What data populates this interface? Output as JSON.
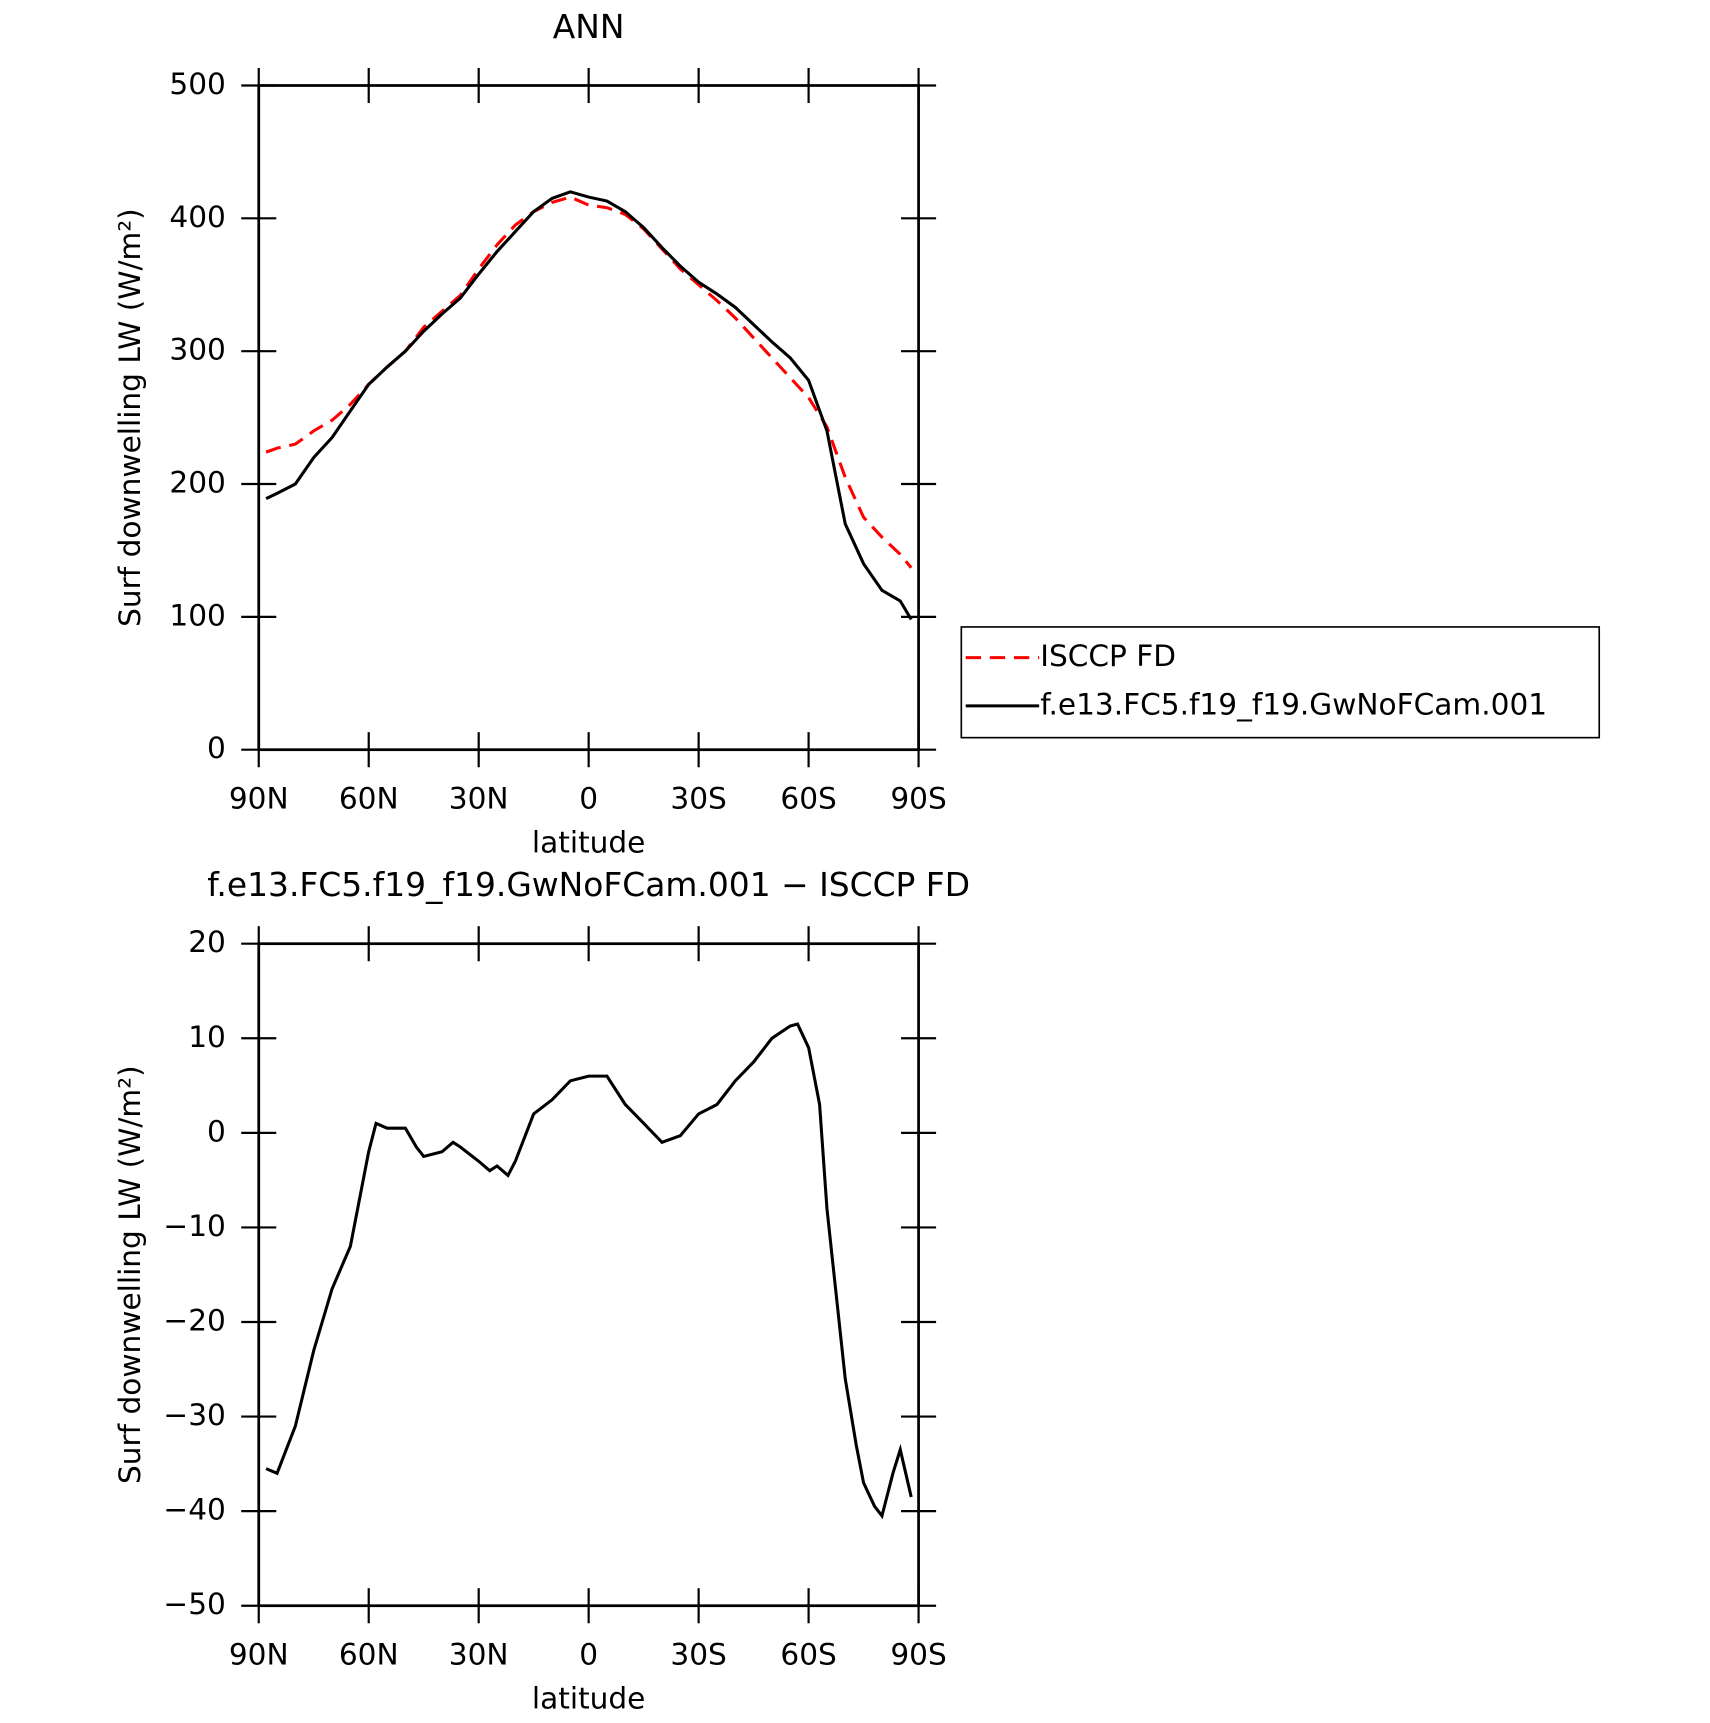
{
  "chart_data": [
    {
      "type": "line",
      "title": "ANN",
      "xlabel": "latitude",
      "ylabel": "Surf downwelling LW (W/m²)",
      "x": [
        88,
        85,
        80,
        75,
        70,
        65,
        60,
        55,
        50,
        45,
        40,
        35,
        30,
        25,
        20,
        15,
        10,
        5,
        0,
        -5,
        -10,
        -15,
        -20,
        -25,
        -30,
        -35,
        -40,
        -45,
        -50,
        -55,
        -60,
        -65,
        -70,
        -75,
        -80,
        -85,
        -88
      ],
      "series": [
        {
          "name": "ISCCP FD",
          "color": "#ff0000",
          "line_style": "dashed",
          "values": [
            224,
            227,
            230,
            240,
            248,
            260,
            275,
            288,
            300,
            318,
            330,
            342,
            362,
            380,
            395,
            405,
            412,
            416,
            410,
            408,
            403,
            392,
            377,
            362,
            350,
            338,
            325,
            310,
            295,
            280,
            265,
            243,
            205,
            175,
            160,
            147,
            137
          ]
        },
        {
          "name": "f.e13.FC5.f19_f19.GwNoFCam.001",
          "color": "#000000",
          "line_style": "solid",
          "values": [
            189,
            193,
            200,
            220,
            235,
            255,
            275,
            288,
            300,
            315,
            328,
            340,
            358,
            375,
            390,
            405,
            415,
            420,
            416,
            413,
            405,
            393,
            378,
            364,
            352,
            343,
            333,
            320,
            307,
            295,
            278,
            240,
            170,
            140,
            120,
            112,
            98
          ]
        }
      ],
      "xlim": [
        90,
        -90
      ],
      "xticks": [
        {
          "value": 90,
          "label": "90N"
        },
        {
          "value": 60,
          "label": "60N"
        },
        {
          "value": 30,
          "label": "30N"
        },
        0,
        {
          "value": -30,
          "label": "30S"
        },
        {
          "value": -60,
          "label": "60S"
        },
        {
          "value": -90,
          "label": "90S"
        }
      ],
      "ylim": [
        0,
        500
      ],
      "yticks": [
        0,
        100,
        200,
        300,
        400,
        500
      ],
      "legend": "right"
    },
    {
      "type": "line",
      "title": "f.e13.FC5.f19_f19.GwNoFCam.001 − ISCCP FD",
      "xlabel": "latitude",
      "ylabel": "Surf downwelling LW (W/m²)",
      "x": [
        88,
        85,
        80,
        75,
        70,
        65,
        60,
        58,
        55,
        50,
        47,
        45,
        40,
        37,
        35,
        30,
        27,
        25,
        22,
        20,
        15,
        10,
        5,
        0,
        -5,
        -10,
        -15,
        -20,
        -25,
        -30,
        -35,
        -40,
        -45,
        -50,
        -55,
        -57,
        -60,
        -63,
        -65,
        -70,
        -73,
        -75,
        -78,
        -80,
        -83,
        -85,
        -88
      ],
      "values": [
        -35.5,
        -36,
        -31,
        -23,
        -16.5,
        -12,
        -2,
        1,
        0.5,
        0.5,
        -1.5,
        -2.5,
        -2,
        -1,
        -1.5,
        -3,
        -4,
        -3.5,
        -4.5,
        -3,
        2,
        3.5,
        5.5,
        6,
        6,
        3,
        1,
        -1,
        -0.3,
        2,
        3,
        5.5,
        7.5,
        10,
        11.3,
        11.5,
        9,
        3,
        -8,
        -26,
        -33,
        -37,
        -39.5,
        -40.5,
        -36,
        -33.5,
        -38.5
      ],
      "color": "#000000",
      "xlim": [
        90,
        -90
      ],
      "xticks": [
        {
          "value": 90,
          "label": "90N"
        },
        {
          "value": 60,
          "label": "60N"
        },
        {
          "value": 30,
          "label": "30N"
        },
        0,
        {
          "value": -30,
          "label": "30S"
        },
        {
          "value": -60,
          "label": "60S"
        },
        {
          "value": -90,
          "label": "90S"
        }
      ],
      "ylim": [
        -50,
        20
      ],
      "yticks": [
        {
          "value": -50,
          "label": "−50"
        },
        {
          "value": -40,
          "label": "−40"
        },
        {
          "value": -30,
          "label": "−30"
        },
        {
          "value": -20,
          "label": "−20"
        },
        {
          "value": -10,
          "label": "−10"
        },
        0,
        10,
        20
      ]
    }
  ]
}
